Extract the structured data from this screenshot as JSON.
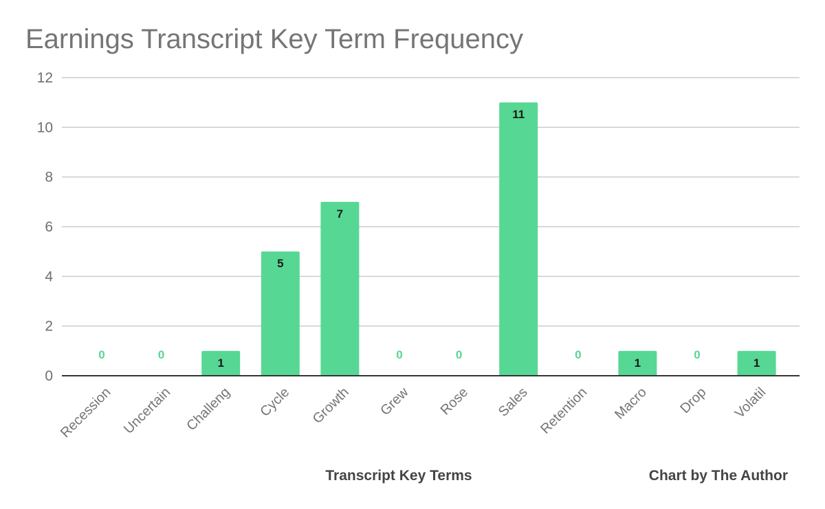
{
  "chart_data": {
    "type": "bar",
    "title": "Earnings Transcript Key Term Frequency",
    "xlabel": "Transcript Key Terms",
    "ylabel": "",
    "credit": "Chart by The Author",
    "categories": [
      "Recession",
      "Uncertain",
      "Challeng",
      "Cycle",
      "Growth",
      "Grew",
      "Rose",
      "Sales",
      "Retention",
      "Macro",
      "Drop",
      "Volatil"
    ],
    "values": [
      0,
      0,
      1,
      5,
      7,
      0,
      0,
      11,
      0,
      1,
      0,
      1
    ],
    "ylim": [
      0,
      12
    ],
    "yticks": [
      0,
      2,
      4,
      6,
      8,
      10,
      12
    ],
    "grid": true,
    "legend": "none",
    "colors": {
      "bar": "#57d794",
      "label_inside": "#1a1a1a",
      "label_zero": "#57d794"
    }
  }
}
